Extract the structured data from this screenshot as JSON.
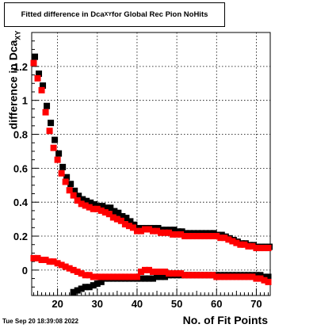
{
  "title": {
    "text": "Fitted difference in Dca",
    "sub": "XY",
    "suffix": " for Global Rec Pion NoHits"
  },
  "timestamp": "Tue Sep 20 18:39:08 2022",
  "colors": {
    "series_black": "#000000",
    "series_red": "#ff0000",
    "grid": "#000000",
    "frame": "#000000"
  },
  "chart_data": {
    "type": "scatter",
    "title": "Fitted difference in Dca_XY for Global Rec Pion NoHits",
    "xlabel": "No. of Fit Points",
    "ylabel": "difference in Dca_XY",
    "ylabel_main": "difference in Dca",
    "ylabel_sub": "XY",
    "xlim": [
      13.5,
      73.5
    ],
    "ylim": [
      -0.15,
      1.4
    ],
    "xticks": [
      20,
      30,
      40,
      50,
      60,
      70
    ],
    "xtick_labels": [
      "20",
      "30",
      "40",
      "50",
      "60",
      "70"
    ],
    "yticks": [
      0,
      0.2,
      0.4,
      0.6,
      0.8,
      1,
      1.2
    ],
    "ytick_labels": [
      "0",
      "0.2",
      "0.4",
      "0.6",
      "0.8",
      "1",
      "1.2"
    ],
    "grid": true,
    "marker": "square",
    "series": [
      {
        "color": "#000000",
        "x": [
          14,
          15,
          16,
          17,
          18,
          19,
          20,
          21,
          22,
          23,
          24,
          25,
          26,
          27,
          28,
          29,
          30,
          31,
          32,
          33,
          34,
          35,
          36,
          37,
          38,
          39,
          40,
          41,
          42,
          43,
          44,
          45,
          46,
          47,
          48,
          49,
          50,
          51,
          52,
          53,
          54,
          55,
          56,
          57,
          58,
          59,
          60,
          61,
          62,
          63,
          64,
          65,
          66,
          67,
          68,
          69,
          70,
          71,
          72,
          73
        ],
        "y": [
          1.25,
          1.15,
          1.08,
          0.96,
          0.86,
          0.76,
          0.68,
          0.6,
          0.54,
          0.5,
          0.46,
          0.43,
          0.41,
          0.4,
          0.39,
          0.38,
          0.37,
          0.37,
          0.36,
          0.36,
          0.34,
          0.33,
          0.31,
          0.3,
          0.28,
          0.26,
          0.24,
          0.24,
          0.24,
          0.24,
          0.24,
          0.24,
          0.23,
          0.23,
          0.23,
          0.23,
          0.22,
          0.22,
          0.21,
          0.21,
          0.21,
          0.21,
          0.21,
          0.21,
          0.21,
          0.21,
          0.2,
          0.2,
          0.19,
          0.18,
          0.17,
          0.16,
          0.15,
          0.15,
          0.14,
          0.14,
          0.13,
          0.13,
          0.13,
          0.13
        ]
      },
      {
        "color": "#000000",
        "x": [
          24,
          25,
          26,
          27,
          28,
          29,
          30,
          31,
          32,
          33,
          34,
          35,
          36,
          37,
          38,
          39,
          40,
          41,
          42,
          43,
          44,
          45,
          46,
          47,
          48,
          49,
          50,
          51,
          52,
          53,
          54,
          55,
          56,
          57,
          58,
          59,
          60,
          61,
          62,
          63,
          64,
          65,
          66,
          67,
          68,
          69,
          70,
          71,
          72,
          73
        ],
        "y": [
          -0.13,
          -0.12,
          -0.11,
          -0.1,
          -0.1,
          -0.09,
          -0.08,
          -0.07,
          -0.05,
          -0.05,
          -0.05,
          -0.05,
          -0.05,
          -0.05,
          -0.05,
          -0.05,
          -0.05,
          -0.05,
          -0.05,
          -0.05,
          -0.05,
          -0.04,
          -0.04,
          -0.04,
          -0.03,
          -0.03,
          -0.03,
          -0.03,
          -0.03,
          -0.03,
          -0.03,
          -0.03,
          -0.03,
          -0.03,
          -0.03,
          -0.03,
          -0.03,
          -0.03,
          -0.03,
          -0.03,
          -0.03,
          -0.03,
          -0.03,
          -0.03,
          -0.03,
          -0.03,
          -0.03,
          -0.03,
          -0.04,
          -0.04
        ]
      },
      {
        "color": "#ff0000",
        "x": [
          14,
          15,
          16,
          17,
          18,
          19,
          20,
          21,
          22,
          23,
          24,
          25,
          26,
          27,
          28,
          29,
          30,
          31,
          32,
          33,
          34,
          35,
          36,
          37,
          38,
          39,
          40,
          41,
          42,
          43,
          44,
          45,
          46,
          47,
          48,
          49,
          50,
          51,
          52,
          53,
          54,
          55,
          56,
          57,
          58,
          59,
          60,
          61,
          62,
          63,
          64,
          65,
          66,
          67,
          68,
          69,
          70,
          71,
          72,
          73
        ],
        "y": [
          1.22,
          1.13,
          1.06,
          0.93,
          0.82,
          0.72,
          0.65,
          0.57,
          0.52,
          0.47,
          0.44,
          0.41,
          0.39,
          0.38,
          0.37,
          0.36,
          0.36,
          0.35,
          0.34,
          0.33,
          0.31,
          0.3,
          0.29,
          0.27,
          0.26,
          0.25,
          0.23,
          0.23,
          0.24,
          0.24,
          0.23,
          0.23,
          0.22,
          0.22,
          0.22,
          0.21,
          0.21,
          0.21,
          0.2,
          0.2,
          0.2,
          0.2,
          0.2,
          0.2,
          0.2,
          0.2,
          0.2,
          0.19,
          0.19,
          0.18,
          0.17,
          0.16,
          0.15,
          0.15,
          0.14,
          0.14,
          0.13,
          0.13,
          0.13,
          0.13
        ]
      },
      {
        "color": "#ff0000",
        "x": [
          14,
          15,
          16,
          17,
          18,
          19,
          20,
          21,
          22,
          23,
          24,
          25,
          26,
          27,
          28,
          29,
          30,
          31,
          32,
          33,
          34,
          35,
          36,
          37,
          38,
          39,
          40,
          41,
          42,
          43,
          44,
          45,
          46,
          47,
          48,
          49,
          50,
          51,
          52,
          53,
          54,
          55,
          56,
          57,
          58,
          59,
          60,
          61,
          62,
          63,
          64,
          65,
          66,
          67,
          68,
          69,
          70,
          71,
          72,
          73
        ],
        "y": [
          0.07,
          0.07,
          0.06,
          0.06,
          0.05,
          0.05,
          0.04,
          0.03,
          0.02,
          0.01,
          0.0,
          -0.01,
          -0.02,
          -0.03,
          -0.03,
          -0.04,
          -0.04,
          -0.04,
          -0.04,
          -0.04,
          -0.04,
          -0.04,
          -0.04,
          -0.04,
          -0.04,
          -0.04,
          -0.04,
          -0.01,
          0.0,
          0.0,
          -0.01,
          -0.01,
          -0.01,
          -0.01,
          -0.02,
          -0.02,
          -0.02,
          -0.02,
          -0.03,
          -0.03,
          -0.03,
          -0.03,
          -0.03,
          -0.03,
          -0.03,
          -0.03,
          -0.04,
          -0.04,
          -0.04,
          -0.04,
          -0.04,
          -0.04,
          -0.04,
          -0.04,
          -0.04,
          -0.04,
          -0.05,
          -0.05,
          -0.06,
          -0.07
        ]
      }
    ]
  }
}
